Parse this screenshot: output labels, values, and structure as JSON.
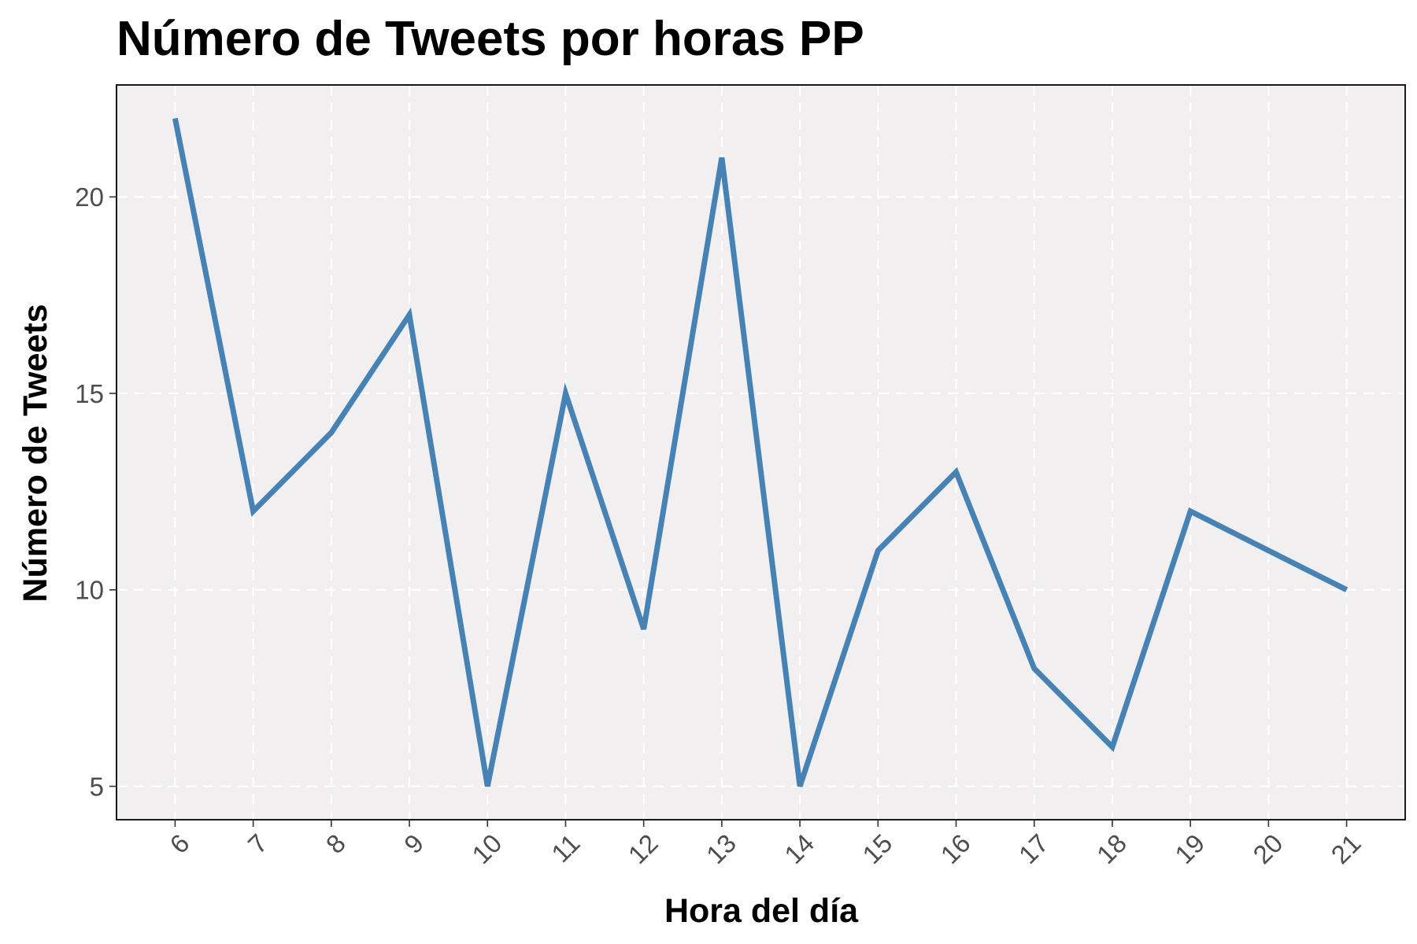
{
  "chart_data": {
    "type": "line",
    "title": "Número de Tweets por horas PP",
    "xlabel": "Hora del día",
    "ylabel": "Número de Tweets",
    "x": [
      6,
      7,
      8,
      9,
      10,
      11,
      12,
      13,
      14,
      15,
      16,
      17,
      18,
      19,
      20,
      21
    ],
    "series": [
      {
        "values": [
          22,
          12,
          14,
          17,
          5,
          15,
          9,
          21,
          5,
          11,
          13,
          8,
          6,
          12,
          11,
          10
        ]
      }
    ],
    "xticks": [
      "6",
      "7",
      "8",
      "9",
      "10",
      "11",
      "12",
      "13",
      "14",
      "15",
      "16",
      "17",
      "18",
      "19",
      "20",
      "21"
    ],
    "yticks": [
      "5",
      "10",
      "15",
      "20"
    ],
    "xlim": [
      5.25,
      21.75
    ],
    "ylim": [
      4.15,
      22.85
    ],
    "grid": true,
    "grid_style": "dashed",
    "legend": "none"
  },
  "colors": {
    "line": "#4682b4",
    "panel_background": "#f1eff0",
    "grid": "#ffffff",
    "panel_border": "#000000",
    "tick_label": "#4d4d4d"
  }
}
